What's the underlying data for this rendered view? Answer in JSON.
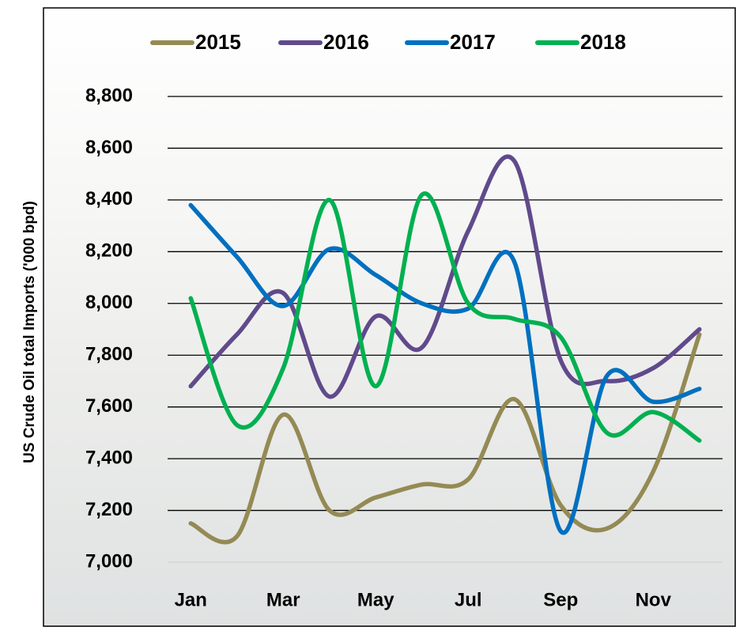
{
  "chart_data": {
    "type": "line",
    "y_axis_label": "US Crude Oil total Imports ('000 bpd)",
    "categories": [
      "Jan",
      null,
      "Mar",
      null,
      "May",
      null,
      "Jul",
      null,
      "Sep",
      null,
      "Nov",
      null
    ],
    "series": [
      {
        "name": "2015",
        "color": "#948a54",
        "values": [
          7150,
          7100,
          7570,
          7200,
          7250,
          7300,
          7320,
          7630,
          7220,
          7130,
          7350,
          7880
        ]
      },
      {
        "name": "2016",
        "color": "#604a8b",
        "values": [
          7680,
          7880,
          8040,
          7640,
          7950,
          7830,
          8280,
          8550,
          7780,
          7700,
          7750,
          7900
        ]
      },
      {
        "name": "2017",
        "color": "#0070c0",
        "values": [
          8380,
          8180,
          7990,
          8210,
          8110,
          8000,
          7980,
          8160,
          7120,
          7720,
          7620,
          7670
        ]
      },
      {
        "name": "2018",
        "color": "#00b050",
        "values": [
          8020,
          7530,
          7750,
          8400,
          7680,
          8420,
          8000,
          7940,
          7870,
          7500,
          7580,
          7470
        ]
      }
    ],
    "ylim": [
      7000,
      8800
    ],
    "yticks": [
      {
        "value": 7000,
        "label": "7,000"
      },
      {
        "value": 7200,
        "label": "7,200"
      },
      {
        "value": 7400,
        "label": "7,400"
      },
      {
        "value": 7600,
        "label": "7,600"
      },
      {
        "value": 7800,
        "label": "7,800"
      },
      {
        "value": 8000,
        "label": "8,000"
      },
      {
        "value": 8200,
        "label": "8,200"
      },
      {
        "value": 8400,
        "label": "8,400"
      },
      {
        "value": 8600,
        "label": "8,600"
      },
      {
        "value": 8800,
        "label": "8,800"
      }
    ],
    "grid": true,
    "smooth": true,
    "legend": "top"
  }
}
